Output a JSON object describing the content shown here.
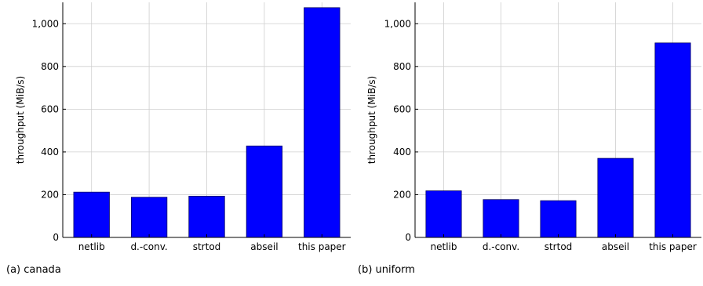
{
  "chart_data": [
    {
      "type": "bar",
      "caption": "(a) canada",
      "categories": [
        "netlib",
        "d.-conv.",
        "strtod",
        "abseil",
        "this paper"
      ],
      "values": [
        212,
        188,
        193,
        428,
        1075
      ],
      "ylabel": "throughput (MiB/s)",
      "ylim": [
        0,
        1100
      ],
      "yticks": [
        0,
        200,
        400,
        600,
        800,
        1000
      ],
      "ytick_labels": [
        "0",
        "200",
        "400",
        "600",
        "800",
        "1,000"
      ],
      "grid": true,
      "bar_color": "#0000ff"
    },
    {
      "type": "bar",
      "caption": "(b) uniform",
      "categories": [
        "netlib",
        "d.-conv.",
        "strtod",
        "abseil",
        "this paper"
      ],
      "values": [
        218,
        177,
        172,
        370,
        910
      ],
      "ylabel": "throughput (MiB/s)",
      "ylim": [
        0,
        1100
      ],
      "yticks": [
        0,
        200,
        400,
        600,
        800,
        1000
      ],
      "ytick_labels": [
        "0",
        "200",
        "400",
        "600",
        "800",
        "1,000"
      ],
      "grid": true,
      "bar_color": "#0000ff"
    }
  ]
}
